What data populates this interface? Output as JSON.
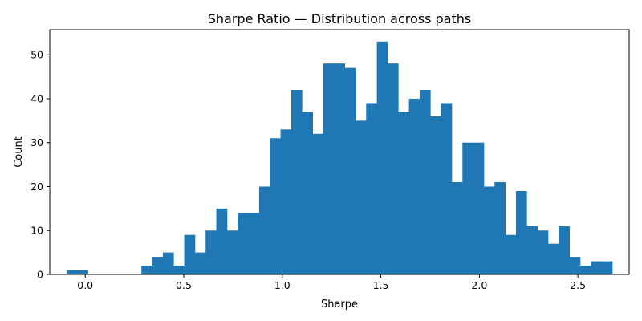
{
  "chart_data": {
    "type": "bar",
    "subtype": "histogram",
    "title": "Sharpe Ratio — Distribution across paths",
    "xlabel": "Sharpe",
    "ylabel": "Count",
    "xlim": [
      -0.18,
      2.76
    ],
    "ylim": [
      0,
      55.7
    ],
    "xticks": [
      0.0,
      0.5,
      1.0,
      1.5,
      2.0,
      2.5
    ],
    "yticks": [
      0,
      10,
      20,
      30,
      40,
      50
    ],
    "xtick_labels": [
      "0.0",
      "0.5",
      "1.0",
      "1.5",
      "2.0",
      "2.5"
    ],
    "ytick_labels": [
      "0",
      "10",
      "20",
      "30",
      "40",
      "50"
    ],
    "grid": false,
    "legend": "none",
    "color": "#1f77b4",
    "bins": {
      "start": -0.095,
      "width": 0.0543,
      "counts": [
        1,
        1,
        0,
        0,
        0,
        0,
        0,
        2,
        4,
        5,
        2,
        9,
        5,
        10,
        15,
        10,
        14,
        14,
        20,
        31,
        33,
        42,
        37,
        32,
        48,
        48,
        47,
        35,
        39,
        53,
        48,
        37,
        40,
        42,
        36,
        39,
        21,
        30,
        30,
        20,
        21,
        9,
        19,
        11,
        10,
        7,
        11,
        4,
        2,
        3,
        3
      ]
    }
  }
}
